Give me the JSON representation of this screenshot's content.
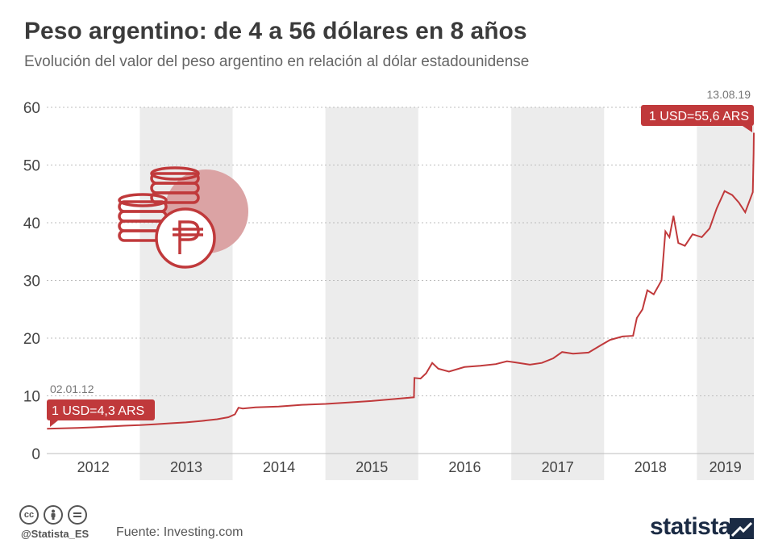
{
  "header": {
    "title": "Peso argentino: de 4 a 56 dólares en 8 años",
    "subtitle": "Evolución del valor del peso argentino en relación al dólar estadounidense"
  },
  "chart_data": {
    "type": "line",
    "title": "Peso argentino: de 4 a 56 dólares en 8 años",
    "subtitle": "Evolución del valor del peso argentino en relación al dólar estadounidense",
    "xlabel": "",
    "ylabel": "",
    "ylim": [
      0,
      60
    ],
    "yticks": [
      0,
      10,
      20,
      30,
      40,
      50,
      60
    ],
    "xticks": [
      "2012",
      "2013",
      "2014",
      "2015",
      "2016",
      "2017",
      "2018",
      "2019"
    ],
    "grid": true,
    "line_color": "#c0393b",
    "band_color": "#ececec",
    "series": [
      {
        "values": [
          [
            "2012-01-02",
            4.3
          ],
          [
            "2012-03-01",
            4.37
          ],
          [
            "2012-05-01",
            4.45
          ],
          [
            "2012-07-01",
            4.55
          ],
          [
            "2012-09-01",
            4.68
          ],
          [
            "2012-11-01",
            4.82
          ],
          [
            "2013-01-02",
            4.93
          ],
          [
            "2013-03-01",
            5.08
          ],
          [
            "2013-05-01",
            5.24
          ],
          [
            "2013-07-01",
            5.4
          ],
          [
            "2013-09-01",
            5.65
          ],
          [
            "2013-11-01",
            5.95
          ],
          [
            "2013-12-15",
            6.3
          ],
          [
            "2014-01-10",
            6.8
          ],
          [
            "2014-01-24",
            7.95
          ],
          [
            "2014-02-10",
            7.8
          ],
          [
            "2014-04-01",
            8.0
          ],
          [
            "2014-07-01",
            8.15
          ],
          [
            "2014-10-01",
            8.45
          ],
          [
            "2015-01-02",
            8.6
          ],
          [
            "2015-04-01",
            8.85
          ],
          [
            "2015-07-01",
            9.1
          ],
          [
            "2015-10-01",
            9.45
          ],
          [
            "2015-12-15",
            9.75
          ],
          [
            "2015-12-17",
            13.1
          ],
          [
            "2016-01-10",
            13.0
          ],
          [
            "2016-02-01",
            13.9
          ],
          [
            "2016-02-25",
            15.7
          ],
          [
            "2016-03-20",
            14.7
          ],
          [
            "2016-05-01",
            14.2
          ],
          [
            "2016-07-01",
            15.0
          ],
          [
            "2016-09-01",
            15.2
          ],
          [
            "2016-11-01",
            15.5
          ],
          [
            "2016-12-15",
            16.0
          ],
          [
            "2017-01-15",
            15.8
          ],
          [
            "2017-03-15",
            15.4
          ],
          [
            "2017-05-01",
            15.7
          ],
          [
            "2017-06-15",
            16.5
          ],
          [
            "2017-07-20",
            17.6
          ],
          [
            "2017-09-01",
            17.3
          ],
          [
            "2017-11-01",
            17.5
          ],
          [
            "2017-12-20",
            18.8
          ],
          [
            "2018-01-25",
            19.7
          ],
          [
            "2018-03-15",
            20.3
          ],
          [
            "2018-04-25",
            20.4
          ],
          [
            "2018-05-10",
            23.5
          ],
          [
            "2018-06-01",
            25.0
          ],
          [
            "2018-06-20",
            28.3
          ],
          [
            "2018-07-15",
            27.6
          ],
          [
            "2018-08-15",
            30.0
          ],
          [
            "2018-08-30",
            38.5
          ],
          [
            "2018-09-15",
            37.5
          ],
          [
            "2018-10-01",
            41.2
          ],
          [
            "2018-10-20",
            36.5
          ],
          [
            "2018-11-15",
            36.0
          ],
          [
            "2018-12-15",
            38.0
          ],
          [
            "2019-01-20",
            37.5
          ],
          [
            "2019-02-20",
            39.0
          ],
          [
            "2019-03-20",
            42.5
          ],
          [
            "2019-04-20",
            45.5
          ],
          [
            "2019-05-20",
            44.8
          ],
          [
            "2019-06-15",
            43.5
          ],
          [
            "2019-07-10",
            41.8
          ],
          [
            "2019-08-09",
            45.3
          ],
          [
            "2019-08-12",
            52.0
          ],
          [
            "2019-08-13",
            55.6
          ]
        ]
      }
    ],
    "annotations": [
      {
        "date": "02.01.12",
        "label": "1 USD=4,3 ARS",
        "x": "2012-01-02",
        "y": 4.3
      },
      {
        "date": "13.08.19",
        "label": "1 USD=55,6 ARS",
        "x": "2019-08-13",
        "y": 55.6
      }
    ]
  },
  "footer": {
    "license_icons": [
      "cc-icon",
      "by-icon",
      "nd-icon"
    ],
    "handle": "@Statista_ES",
    "source": "Fuente: Investing.com",
    "brand": "statista"
  },
  "icon": "coins-peso-icon"
}
